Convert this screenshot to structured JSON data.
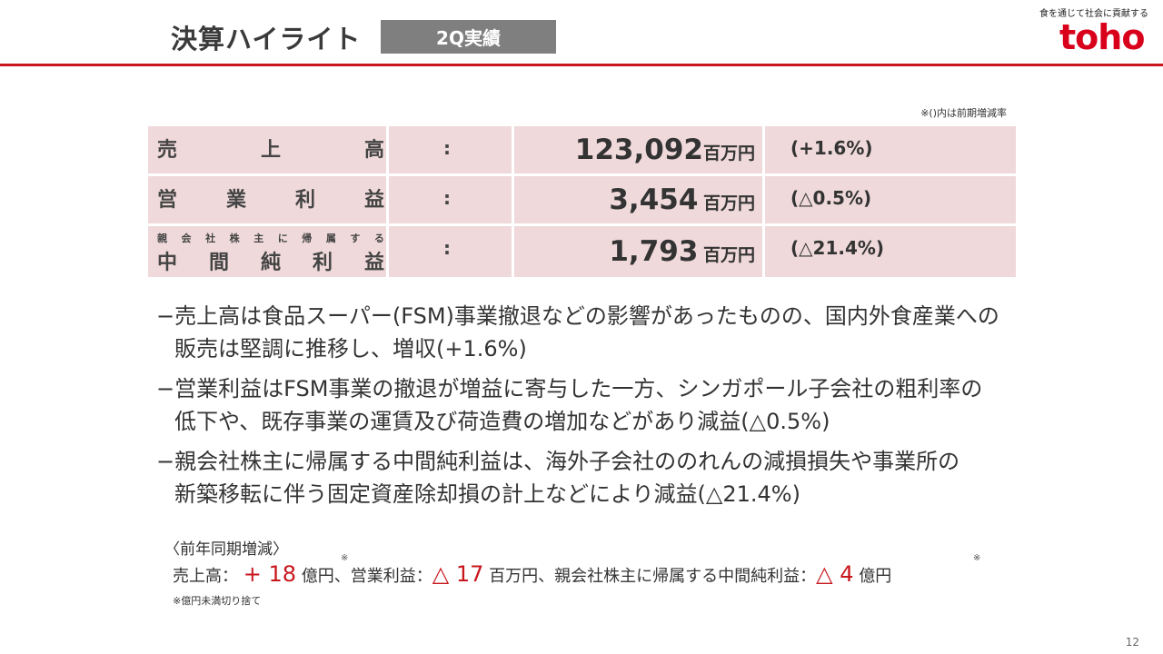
{
  "header": {
    "title": "決算ハイライト",
    "badge": "2Q実績",
    "tagline": "食を通じて社会に貢献する",
    "logo": "toho"
  },
  "note_top": "※()内は前期増減率",
  "kpis": [
    {
      "label_chars": [
        "売",
        "上",
        "高"
      ],
      "colon": ":",
      "value": "123,092",
      "unit": "百万円",
      "change": "(+1.6%)"
    },
    {
      "label_chars": [
        "営",
        "業",
        "利",
        "益"
      ],
      "colon": ":",
      "value": "3,454",
      "unit": "百万円",
      "change": "(△0.5%)"
    },
    {
      "sub_chars": [
        "親",
        "会",
        "社",
        "株",
        "主",
        "に",
        "帰",
        "属",
        "す",
        "る"
      ],
      "label_chars": [
        "中",
        "間",
        "純",
        "利",
        "益"
      ],
      "colon": ":",
      "value": "1,793",
      "unit": "百万円",
      "change": "(△21.4%)"
    }
  ],
  "bullets": [
    {
      "line1": "−売上高は食品スーパー(FSM)事業撤退などの影響があったものの、国内外食産業への",
      "line2": "販売は堅調に推移し、増収(+1.6%)"
    },
    {
      "line1": "−営業利益はFSM事業の撤退が増益に寄与した一方、シンガポール子会社の粗利率の",
      "line2": "低下や、既存事業の運賃及び荷造費の増加などがあり減益(△0.5%)"
    },
    {
      "line1": "−親会社株主に帰属する中間純利益は、海外子会社ののれんの減損損失や事業所の",
      "line2": "新築移転に伴う固定資産除却損の計上などにより減益(△21.4%)"
    }
  ],
  "yoy": {
    "title": "〈前年同期増減〉",
    "sales_label": "売上高：",
    "sales_value": "+ 18",
    "sales_unit": "億円",
    "op_label": "、営業利益：",
    "op_value": "△ 17",
    "op_unit": "百万円",
    "net_label": "、親会社株主に帰属する中間純利益：",
    "net_value": "△ 4",
    "net_unit": "億円",
    "mark": "※",
    "note": "※億円未満切り捨て"
  },
  "page_number": "12",
  "colors": {
    "accent_red": "#c8161d",
    "table_bg": "#efd9da",
    "badge_gray": "#7f7f7f"
  }
}
